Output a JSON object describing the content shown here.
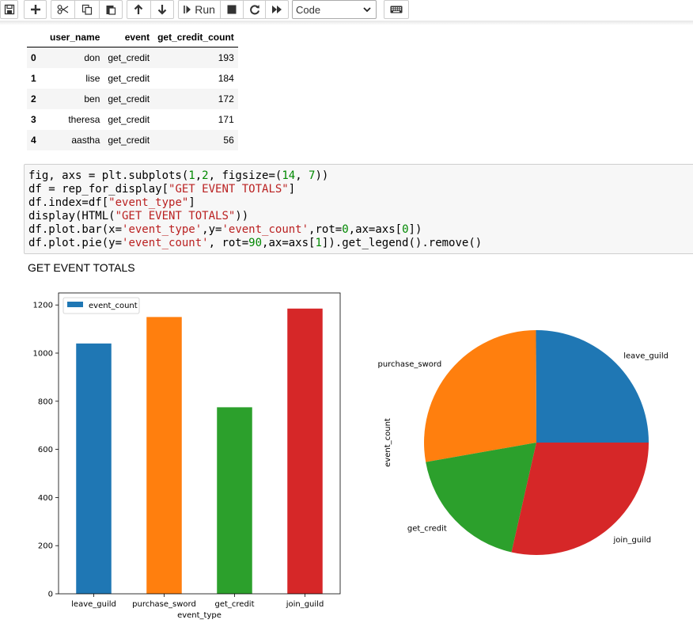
{
  "toolbar": {
    "buttons": [
      {
        "name": "save-icon"
      },
      {
        "name": "plus-icon"
      },
      {
        "name": "cut-icon"
      },
      {
        "name": "copy-icon"
      },
      {
        "name": "paste-icon"
      },
      {
        "name": "arrow-up-icon"
      },
      {
        "name": "arrow-down-icon"
      },
      {
        "name": "run-icon"
      },
      {
        "name": "stop-icon"
      },
      {
        "name": "restart-icon"
      },
      {
        "name": "fast-forward-icon"
      },
      {
        "name": "keyboard-icon"
      }
    ],
    "run_label": "Run",
    "cell_type": "Code"
  },
  "table": {
    "columns": [
      "user_name",
      "event",
      "get_credit_count"
    ],
    "rows": [
      {
        "index": "0",
        "user_name": "don",
        "event": "get_credit",
        "count": "193"
      },
      {
        "index": "1",
        "user_name": "lise",
        "event": "get_credit",
        "count": "184"
      },
      {
        "index": "2",
        "user_name": "ben",
        "event": "get_credit",
        "count": "172"
      },
      {
        "index": "3",
        "user_name": "theresa",
        "event": "get_credit",
        "count": "171"
      },
      {
        "index": "4",
        "user_name": "aastha",
        "event": "get_credit",
        "count": "56"
      }
    ]
  },
  "code": {
    "lines": [
      "fig, axs = plt.subplots(1,2, figsize=(14, 7))",
      "df = rep_for_display[\"GET EVENT TOTALS\"]",
      "df.index=df[\"event_type\"]",
      "display(HTML(\"GET EVENT TOTALS\"))",
      "df.plot.bar(x='event_type',y='event_count',rot=0,ax=axs[0])",
      "df.plot.pie(y='event_count', rot=90,ax=axs[1]).get_legend().remove()"
    ]
  },
  "output_title": "GET EVENT TOTALS",
  "chart_data": [
    {
      "type": "bar",
      "categories": [
        "leave_guild",
        "purchase_sword",
        "get_credit",
        "join_guild"
      ],
      "series": [
        {
          "name": "event_count",
          "values": [
            1040,
            1150,
            775,
            1185
          ]
        }
      ],
      "colors": [
        "#1f77b4",
        "#ff7f0e",
        "#2ca02c",
        "#d62728"
      ],
      "xlabel": "event_type",
      "ylabel": "",
      "ylim": [
        0,
        1250
      ],
      "yticks": [
        0,
        200,
        400,
        600,
        800,
        1000,
        1200
      ],
      "legend": "top-left",
      "grid": false
    },
    {
      "type": "pie",
      "categories": [
        "leave_guild",
        "purchase_sword",
        "get_credit",
        "join_guild"
      ],
      "values": [
        1040,
        1150,
        775,
        1185
      ],
      "colors": [
        "#1f77b4",
        "#ff7f0e",
        "#2ca02c",
        "#d62728"
      ],
      "ylabel": "event_count"
    }
  ]
}
